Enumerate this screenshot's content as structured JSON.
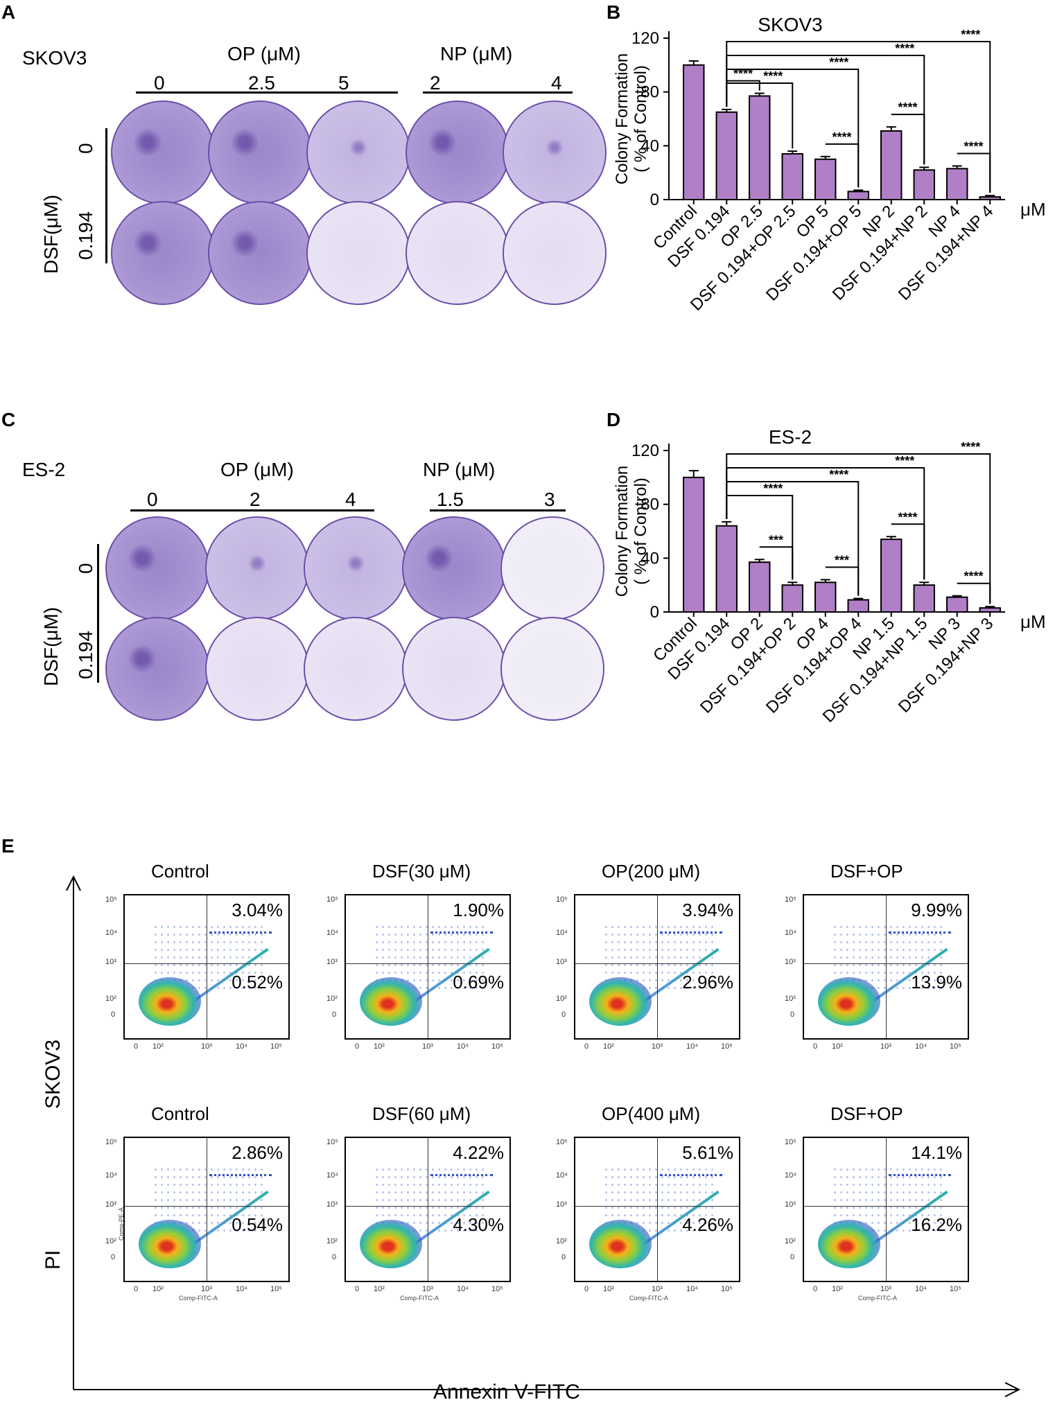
{
  "panels": {
    "a": "A",
    "b": "B",
    "c": "C",
    "d": "D",
    "e": "E"
  },
  "unit_label": "μM",
  "panel_a": {
    "cell_line": "SKOV3",
    "op_label": "OP (μM)",
    "np_label": "NP (μM)",
    "op_doses": [
      "0",
      "2.5",
      "5"
    ],
    "np_doses": [
      "2",
      "4"
    ],
    "dsf_label": "DSF(μM)",
    "dsf_doses": [
      "0",
      "0.194"
    ]
  },
  "panel_c": {
    "cell_line": "ES-2",
    "op_label": "OP (μM)",
    "np_label": "NP (μM)",
    "op_doses": [
      "0",
      "2",
      "4"
    ],
    "np_doses": [
      "1.5",
      "3"
    ],
    "dsf_label": "DSF(μM)",
    "dsf_doses": [
      "0",
      "0.194"
    ]
  },
  "chart_data": [
    {
      "type": "bar",
      "title": "SKOV3",
      "ylabel_line1": "Colony Formation",
      "ylabel_line2": "( % of Control)",
      "ylim": [
        0,
        120
      ],
      "yticks": [
        "0",
        "40",
        "80",
        "120"
      ],
      "categories": [
        "Control",
        "DSF 0.194",
        "OP 2.5",
        "DSF 0.194+OP 2.5",
        "OP 5",
        "DSF 0.194+OP 5",
        "NP 2",
        "DSF 0.194+NP 2",
        "NP 4",
        "DSF 0.194+NP 4"
      ],
      "values": [
        100,
        65,
        77,
        34,
        30,
        6,
        51,
        22,
        23,
        2
      ],
      "errors": [
        3,
        2,
        2,
        2,
        2,
        1,
        3,
        2,
        2,
        1
      ],
      "sig_label": "****",
      "brackets": [
        {
          "from": 1,
          "to": 2,
          "label": "****"
        },
        {
          "from": 1,
          "to": 3,
          "label": "****"
        },
        {
          "from": 4,
          "to": 5,
          "label": "****"
        },
        {
          "from": 1,
          "to": 5,
          "label": "****"
        },
        {
          "from": 6,
          "to": 7,
          "label": "****"
        },
        {
          "from": 1,
          "to": 7,
          "label": "****"
        },
        {
          "from": 8,
          "to": 9,
          "label": "****"
        },
        {
          "from": 1,
          "to": 9,
          "label": "****"
        }
      ]
    },
    {
      "type": "bar",
      "title": "ES-2",
      "ylabel_line1": "Colony Formation",
      "ylabel_line2": "( % of Control)",
      "ylim": [
        0,
        120
      ],
      "yticks": [
        "0",
        "40",
        "80",
        "120"
      ],
      "categories": [
        "Control",
        "DSF 0.194",
        "OP 2",
        "DSF 0.194+OP 2",
        "OP 4",
        "DSF 0.194+OP 4",
        "NP 1.5",
        "DSF 0.194+NP 1.5",
        "NP 3",
        "DSF 0.194+NP 3"
      ],
      "values": [
        100,
        64,
        37,
        20,
        22,
        9,
        54,
        20,
        11,
        3
      ],
      "errors": [
        5,
        3,
        2,
        2,
        2,
        1,
        2,
        2,
        1,
        1
      ],
      "brackets": [
        {
          "from": 2,
          "to": 3,
          "label": "***"
        },
        {
          "from": 1,
          "to": 3,
          "label": "****"
        },
        {
          "from": 4,
          "to": 5,
          "label": "***"
        },
        {
          "from": 1,
          "to": 5,
          "label": "****"
        },
        {
          "from": 6,
          "to": 7,
          "label": "****"
        },
        {
          "from": 1,
          "to": 7,
          "label": "****"
        },
        {
          "from": 8,
          "to": 9,
          "label": "****"
        },
        {
          "from": 1,
          "to": 9,
          "label": "****"
        }
      ]
    }
  ],
  "panel_e": {
    "row_label": "SKOV3",
    "y_axis_label": "PI",
    "x_axis_label": "Annexin V-FITC",
    "tick_labels": [
      "0",
      "10²",
      "10³",
      "10⁴",
      "10⁵"
    ],
    "small_x_label": "Comp-FITC-A",
    "small_y_label": "Comp-PE-A",
    "plots": [
      {
        "title": "Control",
        "upper_right": "3.04%",
        "lower_right": "0.52%"
      },
      {
        "title": "DSF(30 μM)",
        "upper_right": "1.90%",
        "lower_right": "0.69%"
      },
      {
        "title": "OP(200 μM)",
        "upper_right": "3.94%",
        "lower_right": "2.96%"
      },
      {
        "title": "DSF+OP",
        "upper_right": "9.99%",
        "lower_right": "13.9%"
      },
      {
        "title": "Control",
        "upper_right": "2.86%",
        "lower_right": "0.54%"
      },
      {
        "title": "DSF(60 μM)",
        "upper_right": "4.22%",
        "lower_right": "4.30%"
      },
      {
        "title": "OP(400 μM)",
        "upper_right": "5.61%",
        "lower_right": "4.26%"
      },
      {
        "title": "DSF+OP",
        "upper_right": "14.1%",
        "lower_right": "16.2%"
      }
    ]
  }
}
